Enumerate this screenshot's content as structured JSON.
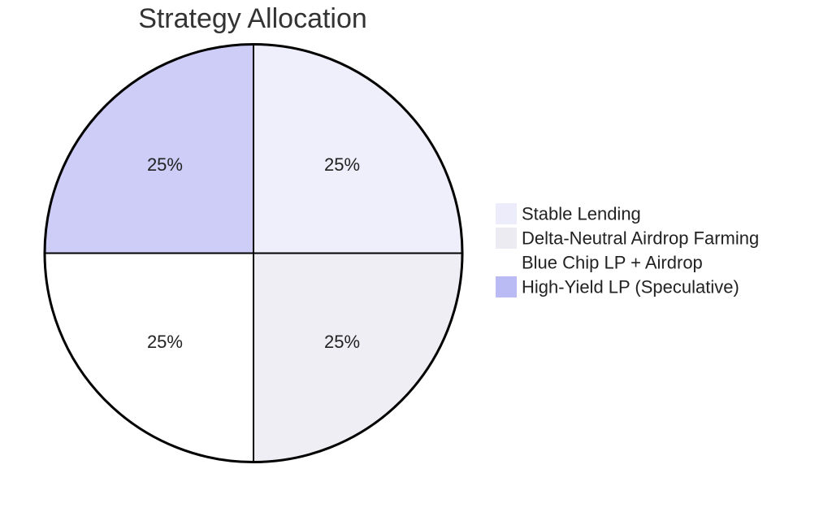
{
  "chart_data": {
    "type": "pie",
    "title": "Strategy Allocation",
    "slices": [
      {
        "label": "Stable Lending",
        "value": 25,
        "display": "25%",
        "color": "#efeefb"
      },
      {
        "label": "Delta-Neutral Airdrop Farming",
        "value": 25,
        "display": "25%",
        "color": "#efeef4"
      },
      {
        "label": "Blue Chip LP + Airdrop",
        "value": 25,
        "display": "25%",
        "color": "#ffffff"
      },
      {
        "label": "High-Yield LP (Speculative)",
        "value": 25,
        "display": "25%",
        "color": "#cdcdf8"
      }
    ],
    "legend_swatch_colors": [
      "#ececfb",
      "#ebebf1",
      "#ffffff",
      "#babaf4"
    ],
    "start_angle_deg": 0,
    "direction": "clockwise",
    "legend_position": "right",
    "stroke_color": "#000000"
  }
}
